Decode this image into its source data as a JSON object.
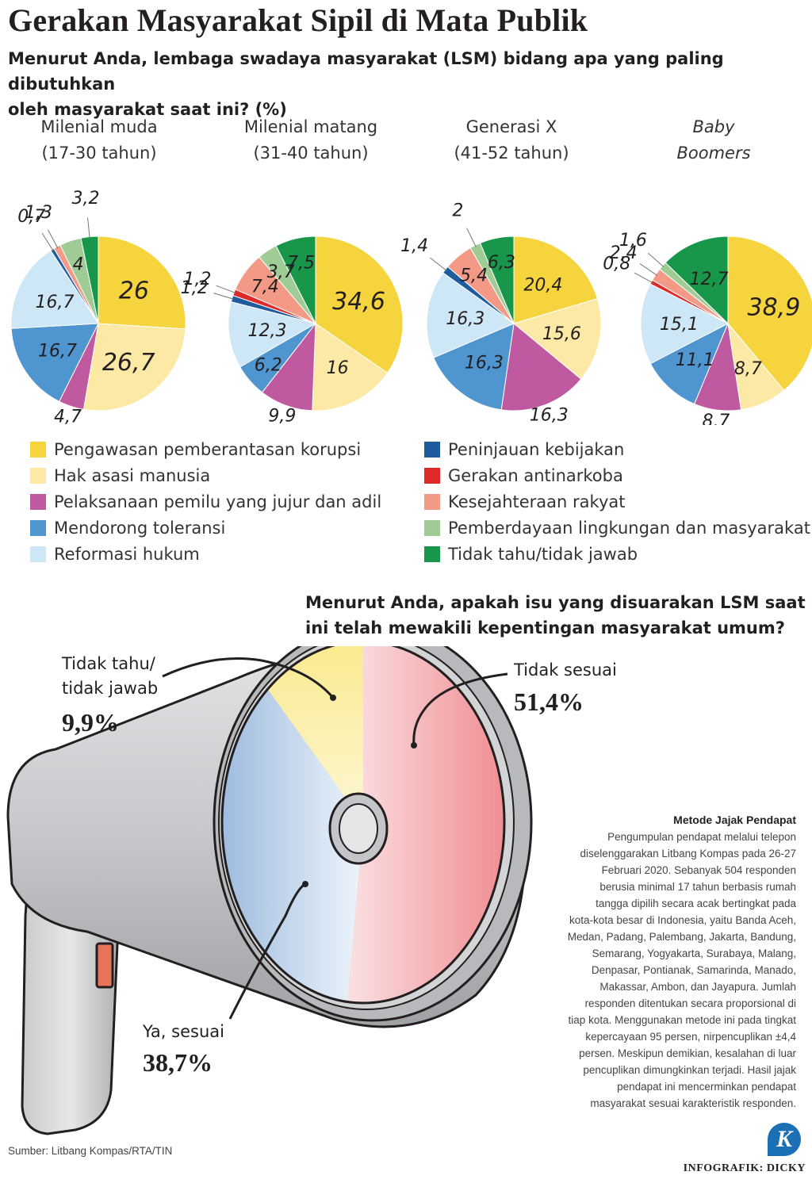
{
  "title": "Gerakan Masyarakat Sipil di Mata Publik",
  "question1": {
    "line1": "Menurut Anda, lembaga swadaya masyarakat (LSM) bidang apa yang paling dibutuhkan",
    "line2": "oleh masyarakat saat ini? (%)"
  },
  "chart_data": [
    {
      "type": "pie",
      "name_line1": "Milenial muda",
      "name_line2": "(17-30 tahun)",
      "label_format": "comma-decimal",
      "slices": [
        {
          "category": "Pengawasan pemberantasan korupsi",
          "value": 26
        },
        {
          "category": "Hak asasi manusia",
          "value": 26.7
        },
        {
          "category": "Pelaksanaan pemilu yang jujur dan adil",
          "value": 4.7
        },
        {
          "category": "Mendorong toleransi",
          "value": 16.7
        },
        {
          "category": "Reformasi hukum",
          "value": 16.7
        },
        {
          "category": "Peninjauan kebijakan",
          "value": 0.7
        },
        {
          "category": "Gerakan antinarkoba",
          "value": 0
        },
        {
          "category": "Kesejahteraan rakyat",
          "value": 1.3
        },
        {
          "category": "Pemberdayaan lingkungan dan masyarakat",
          "value": 4
        },
        {
          "category": "Tidak tahu/tidak jawab",
          "value": 3.2
        }
      ]
    },
    {
      "type": "pie",
      "name_line1": "Milenial matang",
      "name_line2": "(31-40 tahun)",
      "slices": [
        {
          "category": "Pengawasan pemberantasan korupsi",
          "value": 34.6
        },
        {
          "category": "Hak asasi manusia",
          "value": 16
        },
        {
          "category": "Pelaksanaan pemilu yang jujur dan adil",
          "value": 9.9
        },
        {
          "category": "Mendorong toleransi",
          "value": 6.2
        },
        {
          "category": "Reformasi hukum",
          "value": 12.3
        },
        {
          "category": "Peninjauan kebijakan",
          "value": 1.2
        },
        {
          "category": "Gerakan antinarkoba",
          "value": 1.2
        },
        {
          "category": "Kesejahteraan rakyat",
          "value": 7.4
        },
        {
          "category": "Pemberdayaan lingkungan dan masyarakat",
          "value": 3.7
        },
        {
          "category": "Tidak tahu/tidak jawab",
          "value": 7.5
        }
      ]
    },
    {
      "type": "pie",
      "name_line1": "Generasi X",
      "name_line2": "(41-52 tahun)",
      "slices": [
        {
          "category": "Pengawasan pemberantasan korupsi",
          "value": 20.4
        },
        {
          "category": "Hak asasi manusia",
          "value": 15.6
        },
        {
          "category": "Pelaksanaan pemilu yang jujur dan adil",
          "value": 16.3
        },
        {
          "category": "Mendorong toleransi",
          "value": 16.3
        },
        {
          "category": "Reformasi hukum",
          "value": 16.3
        },
        {
          "category": "Peninjauan kebijakan",
          "value": 1.4
        },
        {
          "category": "Gerakan antinarkoba",
          "value": 0
        },
        {
          "category": "Kesejahteraan rakyat",
          "value": 5.4
        },
        {
          "category": "Pemberdayaan lingkungan dan masyarakat",
          "value": 2
        },
        {
          "category": "Tidak tahu/tidak jawab",
          "value": 6.3
        }
      ]
    },
    {
      "type": "pie",
      "name_line1": "Baby",
      "name_line2": "Boomers",
      "slices": [
        {
          "category": "Pengawasan pemberantasan korupsi",
          "value": 38.9
        },
        {
          "category": "Hak asasi manusia",
          "value": 8.7
        },
        {
          "category": "Pelaksanaan pemilu yang jujur dan adil",
          "value": 8.7
        },
        {
          "category": "Mendorong toleransi",
          "value": 11.1
        },
        {
          "category": "Reformasi hukum",
          "value": 15.1
        },
        {
          "category": "Peninjauan kebijakan",
          "value": 0
        },
        {
          "category": "Gerakan antinarkoba",
          "value": 0.8
        },
        {
          "category": "Kesejahteraan rakyat",
          "value": 2.4
        },
        {
          "category": "Pemberdayaan lingkungan dan masyarakat",
          "value": 1.6
        },
        {
          "category": "Tidak tahu/tidak jawab",
          "value": 12.7
        }
      ]
    },
    {
      "type": "pie",
      "slices": [
        {
          "category": "Tidak sesuai",
          "value": 51.4,
          "label": "51,4%"
        },
        {
          "category": "Ya, sesuai",
          "value": 38.7,
          "label": "38,7%"
        },
        {
          "category": "Tidak tahu/ tidak jawab",
          "value": 9.9,
          "label": "9,9%"
        }
      ]
    }
  ],
  "legend": [
    {
      "label": "Pengawasan pemberantasan korupsi",
      "color": "#f6d43d"
    },
    {
      "label": "Hak asasi manusia",
      "color": "#fce9a6"
    },
    {
      "label": "Pelaksanaan pemilu yang jujur dan adil",
      "color": "#c05aa0"
    },
    {
      "label": "Mendorong toleransi",
      "color": "#4f95d0"
    },
    {
      "label": "Reformasi hukum",
      "color": "#cde7f7"
    },
    {
      "label": "Peninjauan kebijakan",
      "color": "#1f5c9e"
    },
    {
      "label": "Gerakan antinarkoba",
      "color": "#e02a2a"
    },
    {
      "label": "Kesejahteraan rakyat",
      "color": "#f29a86"
    },
    {
      "label": "Pemberdayaan lingkungan dan masyarakat",
      "color": "#9fcc95"
    },
    {
      "label": "Tidak tahu/tidak jawab",
      "color": "#18974a"
    }
  ],
  "question2": {
    "line1": "Menurut Anda, apakah isu yang disuarakan LSM saat",
    "line2": "ini telah mewakili kepentingan masyarakat umum?"
  },
  "megaphone": {
    "dunno_label_line1": "Tidak tahu/",
    "dunno_label_line2": "tidak jawab",
    "dunno_pct": "9,9%",
    "no_label": "Tidak sesuai",
    "no_pct": "51,4%",
    "yes_label": "Ya, sesuai",
    "yes_pct": "38,7%",
    "colors": {
      "no": "#e8343e",
      "yes": "#3d78bf",
      "dunno": "#f8e889",
      "body": "#cfd0d2"
    }
  },
  "method": {
    "title": "Metode Jajak Pendapat",
    "lines": [
      "Pengumpulan pendapat melalui telepon",
      "diselenggarakan Litbang Kompas pada 26-27",
      "Februari 2020. Sebanyak 504 responden",
      "berusia minimal 17 tahun berbasis rumah",
      "tangga dipilih secara acak bertingkat pada",
      "kota-kota besar di Indonesia, yaitu Banda Aceh,",
      "Medan, Padang, Palembang, Jakarta, Bandung,",
      "Semarang, Yogyakarta, Surabaya, Malang,",
      "Denpasar, Pontianak, Samarinda, Manado,",
      "Makassar, Ambon, dan Jayapura. Jumlah",
      "responden ditentukan secara proporsional di",
      "tiap kota. Menggunakan metode ini pada tingkat",
      "kepercayaan 95 persen, nirpencuplikan ±4,4",
      "persen. Meskipun demikian, kesalahan di luar",
      "pencuplikan dimungkinkan terjadi. Hasil jajak",
      "pendapat ini mencerminkan pendapat",
      "masyarakat sesuai karakteristik responden."
    ]
  },
  "source": "Sumber: Litbang Kompas/RTA/TIN",
  "logo_letter": "K",
  "credit": "INFOGRAFIK: DICKY"
}
